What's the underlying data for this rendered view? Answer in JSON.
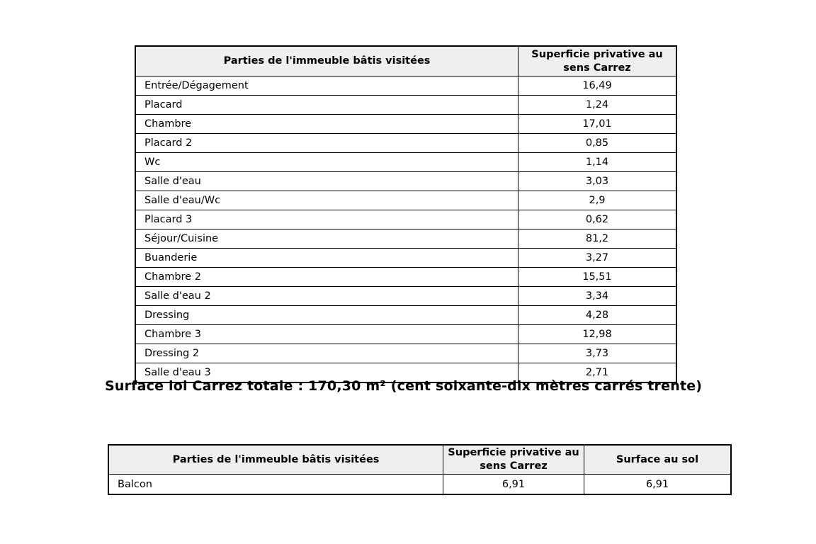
{
  "colors": {
    "header_bg": "#efefef",
    "border": "#000000",
    "page_bg": "#ffffff"
  },
  "table1": {
    "headers": [
      "Parties de l'immeuble bâtis visitées",
      "Superficie privative au sens Carrez"
    ],
    "rows": [
      [
        "Entrée/Dégagement",
        "16,49"
      ],
      [
        "Placard",
        "1,24"
      ],
      [
        "Chambre",
        "17,01"
      ],
      [
        "Placard 2",
        "0,85"
      ],
      [
        "Wc",
        "1,14"
      ],
      [
        "Salle d'eau",
        "3,03"
      ],
      [
        "Salle d'eau/Wc",
        "2,9"
      ],
      [
        "Placard 3",
        "0,62"
      ],
      [
        "Séjour/Cuisine",
        "81,2"
      ],
      [
        "Buanderie",
        "3,27"
      ],
      [
        "Chambre 2",
        "15,51"
      ],
      [
        "Salle d'eau 2",
        "3,34"
      ],
      [
        "Dressing",
        "4,28"
      ],
      [
        "Chambre 3",
        "12,98"
      ],
      [
        "Dressing 2",
        "3,73"
      ],
      [
        "Salle d'eau 3",
        "2,71"
      ]
    ]
  },
  "total_line": "Surface loi Carrez totale : 170,30 m² (cent soixante-dix mètres carrés trente)",
  "table2": {
    "headers": [
      "Parties de l'immeuble bâtis visitées",
      "Superficie privative au sens Carrez",
      "Surface au sol"
    ],
    "rows": [
      [
        "Balcon",
        "6,91",
        "6,91"
      ]
    ]
  }
}
